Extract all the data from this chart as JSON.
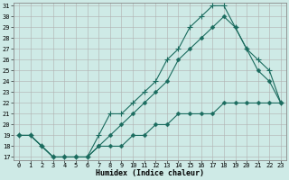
{
  "xlabel": "Humidex (Indice chaleur)",
  "ylabel": "",
  "bg_color": "#ceeae6",
  "grid_color": "#b0b0b0",
  "line_color": "#1a6b5e",
  "xmin": 0,
  "xmax": 23,
  "ymin": 17,
  "ymax": 31,
  "line1_x": [
    0,
    1,
    2,
    3,
    4,
    5,
    6,
    7,
    8,
    9,
    10,
    11,
    12,
    13,
    14,
    15,
    16,
    17,
    18,
    19,
    20,
    21,
    22,
    23
  ],
  "line1_y": [
    19,
    19,
    18,
    17,
    17,
    17,
    17,
    19,
    21,
    21,
    22,
    23,
    24,
    26,
    27,
    29,
    30,
    31,
    31,
    29,
    27,
    26,
    25,
    22
  ],
  "line2_x": [
    0,
    1,
    2,
    3,
    4,
    5,
    6,
    7,
    8,
    9,
    10,
    11,
    12,
    13,
    14,
    15,
    16,
    17,
    18,
    19,
    20,
    21,
    22,
    23
  ],
  "line2_y": [
    19,
    19,
    18,
    17,
    17,
    17,
    17,
    18,
    19,
    20,
    21,
    22,
    23,
    24,
    26,
    27,
    28,
    29,
    30,
    29,
    27,
    25,
    24,
    22
  ],
  "line3_x": [
    0,
    1,
    2,
    3,
    4,
    5,
    6,
    7,
    8,
    9,
    10,
    11,
    12,
    13,
    14,
    15,
    16,
    17,
    18,
    19,
    20,
    21,
    22,
    23
  ],
  "line3_y": [
    19,
    19,
    18,
    17,
    17,
    17,
    17,
    18,
    18,
    18,
    19,
    19,
    20,
    20,
    21,
    21,
    21,
    21,
    22,
    22,
    22,
    22,
    22,
    22
  ],
  "tick_fontsize": 5.0,
  "xlabel_fontsize": 6.0,
  "marker_size": 3.0,
  "line_width": 0.8
}
